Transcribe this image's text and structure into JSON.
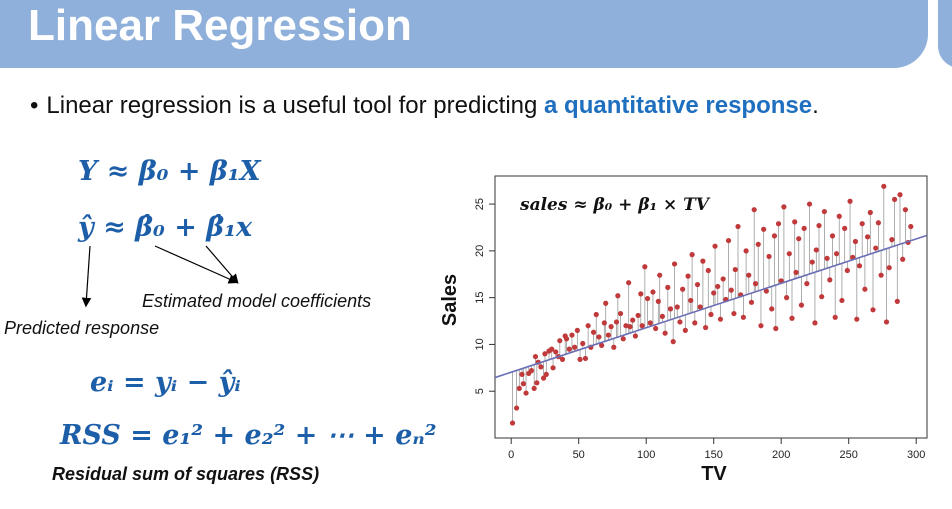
{
  "slide": {
    "title": "Linear Regression",
    "bullet_bullet": "•",
    "bullet_text": "Linear regression is a useful tool for predicting ",
    "bullet_highlight": "a quantitative response",
    "bullet_end": "."
  },
  "equations": {
    "population": "Y ≈ β₀ + β₁X",
    "estimated": "ŷ ≈ β̂₀ + β̂₁x",
    "residual": "eᵢ = yᵢ − ŷᵢ",
    "rss": "RSS = e₁² + e₂² + ⋯ + eₙ²"
  },
  "annotations": {
    "coefficients": "Estimated model coefficients",
    "predicted": "Predicted response",
    "rss_label": "Residual sum of squares (RSS)"
  },
  "chart_data": {
    "type": "scatter",
    "xlabel": "TV",
    "ylabel": "Sales",
    "annotation": "sales ≈ β₀ + β₁ × TV",
    "xlim": [
      -12,
      308
    ],
    "ylim": [
      0,
      28
    ],
    "xticks": [
      0,
      50,
      100,
      150,
      200,
      250,
      300
    ],
    "yticks": [
      5,
      10,
      15,
      20,
      25
    ],
    "fit_line": {
      "intercept": 7.03,
      "slope": 0.0475
    },
    "point_color": "#c0393b",
    "line_color": "#6a6fb5",
    "x": [
      1,
      4,
      6,
      8,
      9,
      11,
      13,
      15,
      17,
      18,
      19,
      20,
      22,
      24,
      25,
      26,
      28,
      30,
      31,
      33,
      35,
      36,
      38,
      40,
      41,
      43,
      45,
      47,
      49,
      51,
      53,
      55,
      57,
      59,
      61,
      63,
      65,
      67,
      69,
      70,
      72,
      74,
      76,
      78,
      79,
      81,
      83,
      85,
      87,
      88,
      90,
      92,
      94,
      96,
      97,
      99,
      101,
      103,
      105,
      107,
      109,
      110,
      112,
      114,
      116,
      118,
      120,
      121,
      123,
      125,
      127,
      129,
      131,
      133,
      134,
      136,
      138,
      140,
      142,
      144,
      146,
      148,
      150,
      151,
      153,
      155,
      157,
      159,
      161,
      163,
      165,
      166,
      168,
      170,
      172,
      174,
      176,
      178,
      180,
      181,
      183,
      185,
      187,
      189,
      191,
      193,
      195,
      196,
      198,
      200,
      202,
      204,
      206,
      208,
      210,
      211,
      213,
      215,
      217,
      219,
      221,
      223,
      225,
      226,
      228,
      230,
      232,
      234,
      236,
      238,
      240,
      241,
      243,
      245,
      247,
      249,
      251,
      253,
      255,
      256,
      258,
      260,
      262,
      264,
      266,
      268,
      270,
      272,
      274,
      276,
      278,
      280,
      282,
      284,
      286,
      288,
      290,
      292,
      294,
      296
    ],
    "y": [
      1.6,
      3.2,
      5.3,
      6.8,
      5.8,
      4.8,
      6.9,
      7.2,
      5.3,
      8.7,
      5.9,
      8.1,
      7.6,
      6.4,
      9.0,
      6.8,
      9.3,
      9.5,
      7.5,
      9.2,
      8.7,
      10.4,
      8.4,
      10.9,
      10.6,
      9.5,
      11.0,
      9.7,
      11.5,
      8.4,
      10.1,
      8.5,
      12.0,
      9.7,
      11.3,
      13.2,
      10.8,
      9.9,
      12.3,
      14.4,
      11.0,
      11.9,
      9.7,
      12.4,
      15.2,
      13.3,
      10.6,
      12.0,
      16.6,
      11.9,
      12.6,
      10.9,
      13.1,
      15.4,
      12.0,
      18.3,
      14.9,
      12.3,
      15.6,
      11.7,
      14.6,
      17.4,
      13.0,
      11.2,
      16.1,
      13.8,
      10.3,
      18.6,
      14.0,
      12.4,
      15.9,
      11.5,
      17.3,
      14.7,
      19.6,
      12.3,
      16.4,
      14.0,
      18.9,
      11.8,
      17.9,
      13.2,
      15.5,
      20.5,
      16.2,
      12.7,
      17.0,
      14.8,
      21.1,
      15.8,
      13.3,
      18.0,
      22.6,
      15.3,
      12.9,
      20.0,
      17.4,
      14.5,
      24.4,
      16.5,
      20.7,
      12.0,
      22.3,
      15.7,
      19.4,
      13.8,
      21.6,
      11.7,
      22.9,
      16.8,
      24.7,
      15.0,
      19.7,
      12.8,
      23.1,
      17.7,
      21.3,
      14.2,
      22.4,
      16.5,
      25.0,
      18.8,
      12.3,
      20.1,
      22.7,
      15.1,
      24.2,
      19.2,
      16.9,
      21.6,
      12.9,
      19.7,
      23.7,
      14.7,
      22.4,
      17.9,
      25.3,
      19.3,
      21.0,
      12.7,
      18.4,
      22.9,
      15.9,
      21.5,
      24.1,
      13.7,
      20.3,
      23.0,
      17.4,
      26.9,
      12.4,
      18.2,
      21.2,
      25.5,
      14.6,
      26.0,
      19.1,
      24.4,
      20.9,
      22.6
    ]
  }
}
